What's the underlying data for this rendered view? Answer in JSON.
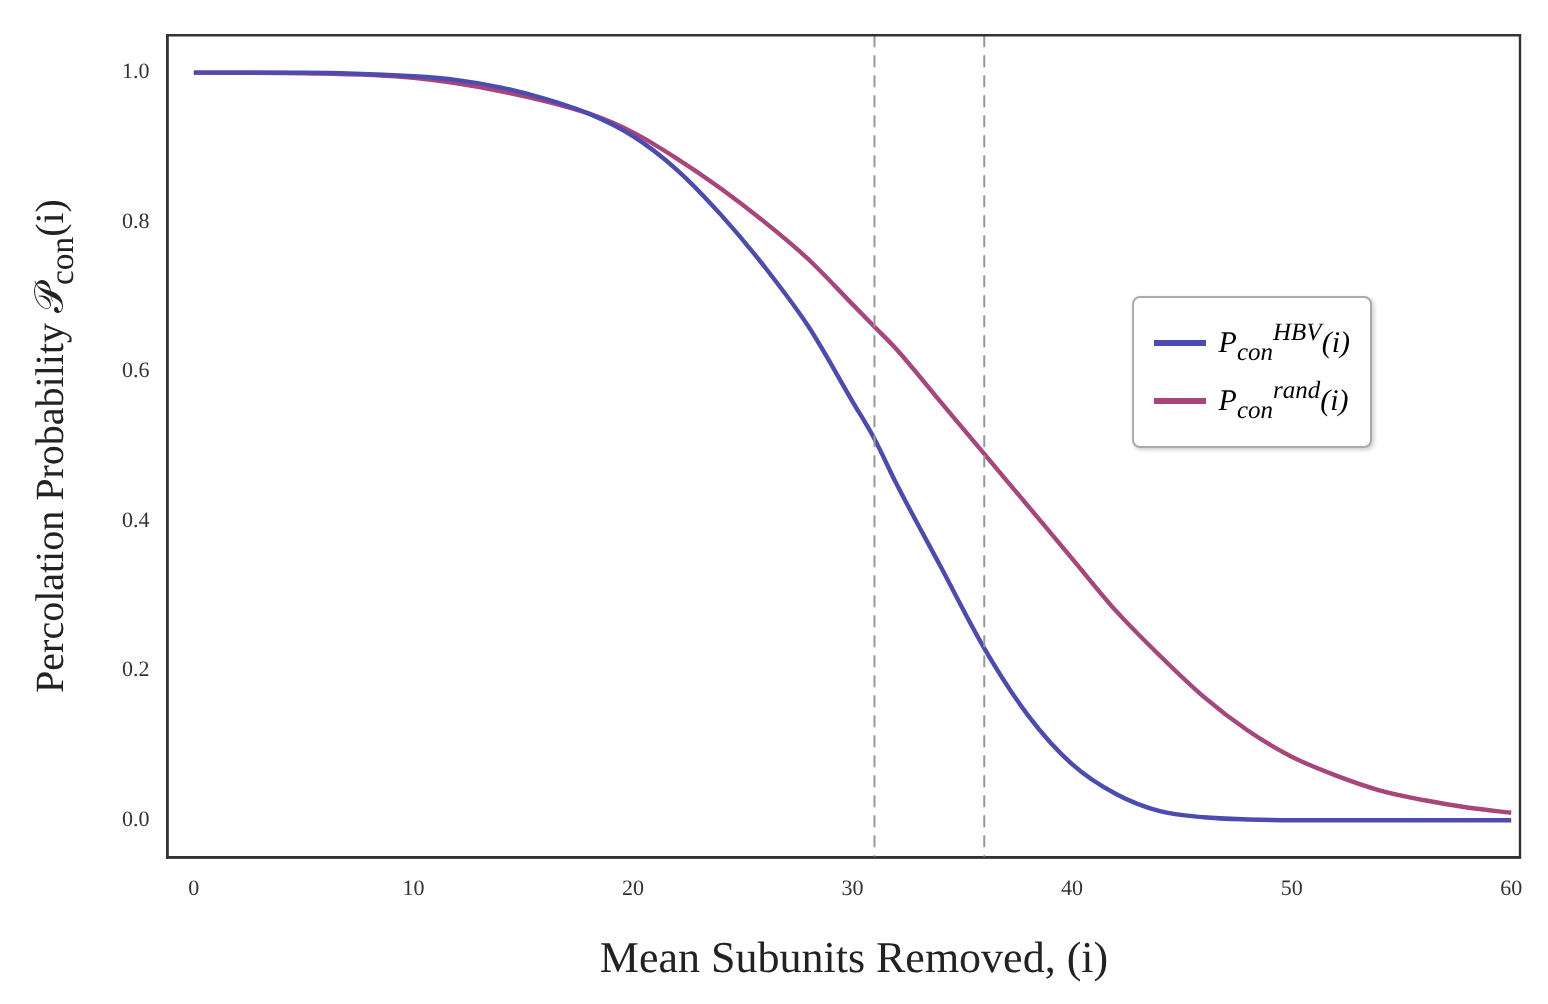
{
  "chart_data": {
    "type": "line",
    "xlabel": "Mean Subunits Removed, (i)",
    "ylabel": "Percolation Probability 𝒫$_{con}$(i)",
    "xlim": [
      -1.2,
      60.4
    ],
    "ylim": [
      -0.05,
      1.05
    ],
    "xticks": [
      0,
      10,
      20,
      30,
      40,
      50,
      60
    ],
    "yticks": [
      {
        "value": 0,
        "label": "0.0"
      },
      0.2,
      0.4,
      0.6,
      0.8,
      {
        "value": 1,
        "label": "1.0"
      }
    ],
    "grid": false,
    "legend": "right",
    "marker": "none",
    "line_style": "solid",
    "ref_lines": [
      {
        "axis": "x",
        "value": 31,
        "color": "#999999",
        "line_style": "dashed"
      },
      {
        "axis": "x",
        "value": 36,
        "color": "#999999",
        "line_style": "dashed"
      }
    ],
    "series": [
      {
        "name": "P$_{con}$$^{HBV}$(i)",
        "color": "#4b4bb0",
        "x": [
          0,
          5,
          10,
          12,
          14,
          16,
          18,
          20,
          22,
          24,
          26,
          28,
          30,
          31,
          32,
          34,
          36,
          38,
          40,
          42,
          44,
          46,
          48,
          50,
          55,
          60
        ],
        "values": [
          1.0,
          1.0,
          0.995,
          0.99,
          0.98,
          0.965,
          0.945,
          0.915,
          0.87,
          0.81,
          0.74,
          0.66,
          0.56,
          0.51,
          0.45,
          0.34,
          0.23,
          0.14,
          0.075,
          0.035,
          0.012,
          0.004,
          0.001,
          0,
          0,
          0
        ]
      },
      {
        "name": "P$_{con}$$^{rand}$(i)",
        "color": "#a8457a",
        "x": [
          0,
          5,
          10,
          14,
          18,
          20,
          22,
          24,
          26,
          28,
          30,
          31,
          32,
          34,
          36,
          38,
          40,
          42,
          44,
          46,
          48,
          50,
          52,
          54,
          56,
          58,
          60
        ],
        "values": [
          1.0,
          0.999,
          0.993,
          0.975,
          0.945,
          0.92,
          0.885,
          0.845,
          0.8,
          0.75,
          0.69,
          0.66,
          0.63,
          0.56,
          0.49,
          0.42,
          0.35,
          0.28,
          0.22,
          0.165,
          0.12,
          0.085,
          0.06,
          0.04,
          0.027,
          0.017,
          0.01
        ]
      }
    ]
  }
}
